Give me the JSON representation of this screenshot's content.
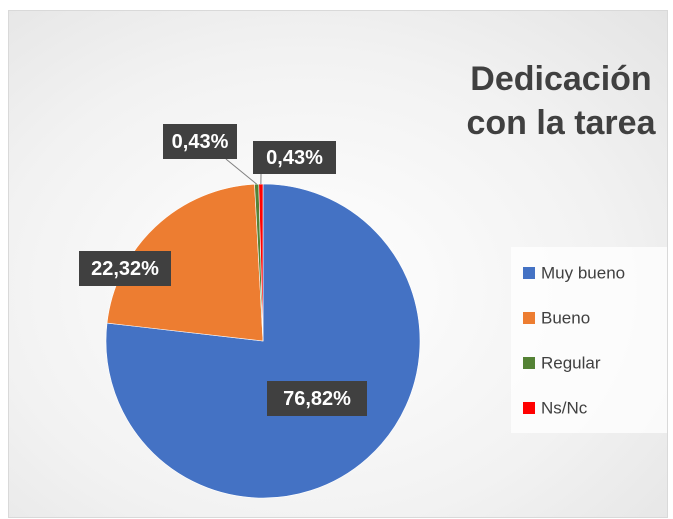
{
  "chart_data": {
    "type": "pie",
    "title": "Dedicación con la tarea",
    "categories": [
      "Muy bueno",
      "Bueno",
      "Regular",
      "Ns/Nc"
    ],
    "values": [
      76.82,
      22.32,
      0.43,
      0.43
    ],
    "value_labels": [
      "76,82%",
      "22,32%",
      "0,43%",
      "0,43%"
    ],
    "colors": [
      "#4472c4",
      "#ed7d31",
      "#548235",
      "#ff0000"
    ],
    "legend": "right"
  }
}
